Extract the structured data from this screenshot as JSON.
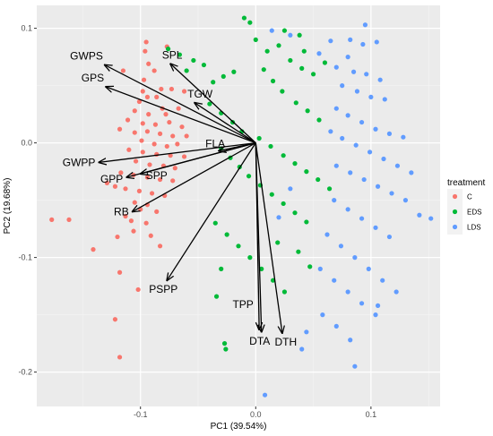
{
  "chart_data": {
    "type": "scatter",
    "title": "",
    "xlabel": "PC1 (39.54%)",
    "ylabel": "PC2 (19.68%)",
    "xlim": [
      -0.19,
      0.16
    ],
    "ylim": [
      -0.23,
      0.12
    ],
    "x_ticks": [
      -0.1,
      0.0,
      0.1
    ],
    "x_tick_labels": [
      "-0.1",
      "0.0",
      "0.1"
    ],
    "y_ticks": [
      -0.2,
      -0.1,
      0.0,
      0.1
    ],
    "y_tick_labels": [
      "-0.2",
      "-0.1",
      "0.0",
      "0.1"
    ],
    "grid": true,
    "legend_placement": "right",
    "legend": {
      "title": "treatment",
      "entries": [
        {
          "label": "C",
          "color": "#F8766D"
        },
        {
          "label": "EDS",
          "color": "#00BA38"
        },
        {
          "label": "LDS",
          "color": "#619CFF"
        }
      ]
    },
    "series": [
      {
        "name": "C",
        "color": "#F8766D",
        "points": [
          [
            -0.095,
            0.088
          ],
          [
            -0.096,
            0.08
          ],
          [
            -0.077,
            0.084
          ],
          [
            -0.097,
            0.055
          ],
          [
            -0.115,
            0.063
          ],
          [
            -0.093,
            0.069
          ],
          [
            -0.088,
            0.063
          ],
          [
            -0.098,
            0.045
          ],
          [
            -0.082,
            0.047
          ],
          [
            -0.073,
            0.047
          ],
          [
            -0.094,
            0.04
          ],
          [
            -0.101,
            0.036
          ],
          [
            -0.086,
            0.04
          ],
          [
            -0.081,
            0.03
          ],
          [
            -0.105,
            0.028
          ],
          [
            -0.093,
            0.025
          ],
          [
            -0.078,
            0.025
          ],
          [
            -0.067,
            0.03
          ],
          [
            -0.062,
            0.045
          ],
          [
            -0.111,
            0.02
          ],
          [
            -0.098,
            0.017
          ],
          [
            -0.087,
            0.016
          ],
          [
            -0.075,
            0.018
          ],
          [
            -0.064,
            0.014
          ],
          [
            -0.118,
            0.012
          ],
          [
            -0.105,
            0.009
          ],
          [
            -0.094,
            0.01
          ],
          [
            -0.083,
            0.008
          ],
          [
            -0.072,
            0.006
          ],
          [
            -0.06,
            0.006
          ],
          [
            -0.099,
            0.002
          ],
          [
            -0.088,
            -0.001
          ],
          [
            -0.077,
            -0.003
          ],
          [
            -0.068,
            -0.001
          ],
          [
            -0.11,
            -0.006
          ],
          [
            -0.098,
            -0.008
          ],
          [
            -0.086,
            -0.01
          ],
          [
            -0.074,
            -0.011
          ],
          [
            -0.062,
            -0.012
          ],
          [
            -0.104,
            -0.016
          ],
          [
            -0.092,
            -0.019
          ],
          [
            -0.08,
            -0.02
          ],
          [
            -0.07,
            -0.022
          ],
          [
            -0.117,
            -0.026
          ],
          [
            -0.106,
            -0.028
          ],
          [
            -0.094,
            -0.03
          ],
          [
            -0.083,
            -0.032
          ],
          [
            -0.072,
            -0.033
          ],
          [
            -0.129,
            -0.035
          ],
          [
            -0.122,
            -0.038
          ],
          [
            -0.113,
            -0.04
          ],
          [
            -0.101,
            -0.042
          ],
          [
            -0.09,
            -0.044
          ],
          [
            -0.079,
            -0.046
          ],
          [
            -0.105,
            -0.052
          ],
          [
            -0.094,
            -0.054
          ],
          [
            -0.1,
            -0.058
          ],
          [
            -0.086,
            -0.06
          ],
          [
            -0.113,
            -0.064
          ],
          [
            -0.108,
            -0.068
          ],
          [
            -0.095,
            -0.07
          ],
          [
            -0.106,
            -0.077
          ],
          [
            -0.091,
            -0.081
          ],
          [
            -0.083,
            -0.09
          ],
          [
            -0.12,
            -0.082
          ],
          [
            -0.141,
            -0.093
          ],
          [
            -0.177,
            -0.067
          ],
          [
            -0.162,
            -0.067
          ],
          [
            -0.118,
            -0.113
          ],
          [
            -0.102,
            -0.128
          ],
          [
            -0.122,
            -0.154
          ],
          [
            -0.118,
            -0.187
          ]
        ]
      },
      {
        "name": "EDS",
        "color": "#00BA38",
        "points": [
          [
            -0.076,
            0.082
          ],
          [
            -0.066,
            0.077
          ],
          [
            -0.054,
            0.072
          ],
          [
            -0.06,
            0.063
          ],
          [
            -0.045,
            0.068
          ],
          [
            -0.037,
            0.053
          ],
          [
            -0.028,
            0.058
          ],
          [
            -0.019,
            0.062
          ],
          [
            -0.01,
            0.109
          ],
          [
            -0.005,
            0.105
          ],
          [
            0.0,
            0.09
          ],
          [
            0.01,
            0.08
          ],
          [
            0.02,
            0.085
          ],
          [
            0.03,
            0.072
          ],
          [
            0.04,
            0.065
          ],
          [
            0.05,
            0.06
          ],
          [
            0.06,
            0.07
          ],
          [
            0.038,
            0.094
          ],
          [
            0.025,
            0.098
          ],
          [
            0.042,
            0.08
          ],
          [
            0.007,
            0.064
          ],
          [
            0.015,
            0.054
          ],
          [
            0.023,
            0.045
          ],
          [
            0.035,
            0.035
          ],
          [
            0.045,
            0.028
          ],
          [
            0.055,
            0.02
          ],
          [
            -0.04,
            0.034
          ],
          [
            -0.03,
            0.026
          ],
          [
            -0.02,
            0.018
          ],
          [
            -0.012,
            0.01
          ],
          [
            0.003,
            0.004
          ],
          [
            0.013,
            -0.003
          ],
          [
            0.024,
            -0.011
          ],
          [
            0.034,
            -0.018
          ],
          [
            0.044,
            -0.025
          ],
          [
            0.054,
            -0.032
          ],
          [
            0.064,
            -0.04
          ],
          [
            -0.03,
            -0.005
          ],
          [
            -0.022,
            -0.013
          ],
          [
            -0.014,
            -0.021
          ],
          [
            -0.006,
            -0.029
          ],
          [
            0.004,
            -0.037
          ],
          [
            0.014,
            -0.045
          ],
          [
            0.024,
            -0.053
          ],
          [
            0.034,
            -0.061
          ],
          [
            0.044,
            -0.069
          ],
          [
            -0.035,
            -0.07
          ],
          [
            -0.025,
            -0.08
          ],
          [
            -0.015,
            -0.09
          ],
          [
            -0.005,
            -0.1
          ],
          [
            0.005,
            -0.11
          ],
          [
            0.015,
            -0.12
          ],
          [
            0.025,
            -0.13
          ],
          [
            -0.034,
            -0.134
          ],
          [
            0.019,
            -0.087
          ],
          [
            0.037,
            -0.095
          ],
          [
            0.047,
            -0.108
          ],
          [
            -0.027,
            -0.175
          ],
          [
            -0.026,
            -0.18
          ],
          [
            -0.03,
            -0.11
          ]
        ]
      },
      {
        "name": "LDS",
        "color": "#619CFF",
        "points": [
          [
            0.014,
            0.098
          ],
          [
            0.03,
            0.094
          ],
          [
            0.055,
            0.078
          ],
          [
            0.065,
            0.089
          ],
          [
            0.082,
            0.09
          ],
          [
            0.095,
            0.103
          ],
          [
            0.093,
            0.086
          ],
          [
            0.105,
            0.088
          ],
          [
            0.08,
            0.075
          ],
          [
            0.07,
            0.066
          ],
          [
            0.085,
            0.062
          ],
          [
            0.096,
            0.06
          ],
          [
            0.108,
            0.055
          ],
          [
            0.075,
            0.05
          ],
          [
            0.088,
            0.045
          ],
          [
            0.1,
            0.04
          ],
          [
            0.112,
            0.038
          ],
          [
            0.07,
            0.03
          ],
          [
            0.08,
            0.024
          ],
          [
            0.092,
            0.018
          ],
          [
            0.104,
            0.012
          ],
          [
            0.116,
            0.008
          ],
          [
            0.128,
            0.005
          ],
          [
            0.065,
            0.01
          ],
          [
            0.075,
            0.004
          ],
          [
            0.087,
            -0.002
          ],
          [
            0.099,
            -0.008
          ],
          [
            0.111,
            -0.014
          ],
          [
            0.123,
            -0.02
          ],
          [
            0.135,
            -0.026
          ],
          [
            0.07,
            -0.02
          ],
          [
            0.082,
            -0.026
          ],
          [
            0.094,
            -0.032
          ],
          [
            0.106,
            -0.038
          ],
          [
            0.118,
            -0.044
          ],
          [
            0.13,
            -0.05
          ],
          [
            0.142,
            -0.063
          ],
          [
            0.152,
            -0.066
          ],
          [
            0.068,
            -0.05
          ],
          [
            0.08,
            -0.058
          ],
          [
            0.092,
            -0.066
          ],
          [
            0.104,
            -0.074
          ],
          [
            0.116,
            -0.082
          ],
          [
            0.062,
            -0.08
          ],
          [
            0.074,
            -0.09
          ],
          [
            0.086,
            -0.1
          ],
          [
            0.098,
            -0.11
          ],
          [
            0.11,
            -0.12
          ],
          [
            0.122,
            -0.13
          ],
          [
            0.056,
            -0.11
          ],
          [
            0.068,
            -0.12
          ],
          [
            0.08,
            -0.13
          ],
          [
            0.092,
            -0.14
          ],
          [
            0.104,
            -0.15
          ],
          [
            0.058,
            -0.15
          ],
          [
            0.07,
            -0.16
          ],
          [
            0.082,
            -0.172
          ],
          [
            0.044,
            -0.165
          ],
          [
            0.04,
            -0.18
          ],
          [
            0.086,
            -0.195
          ],
          [
            0.02,
            -0.065
          ],
          [
            0.03,
            -0.04
          ],
          [
            0.008,
            -0.22
          ],
          [
            0.106,
            -0.142
          ]
        ]
      }
    ],
    "loadings": [
      {
        "name": "GWPS",
        "x": -0.131,
        "y": 0.068
      },
      {
        "name": "SPL",
        "x": -0.074,
        "y": 0.069
      },
      {
        "name": "GPS",
        "x": -0.13,
        "y": 0.049
      },
      {
        "name": "TGW",
        "x": -0.053,
        "y": 0.035
      },
      {
        "name": "FLA",
        "x": -0.032,
        "y": -0.007
      },
      {
        "name": "GWPP",
        "x": -0.136,
        "y": -0.017
      },
      {
        "name": "GPP",
        "x": -0.112,
        "y": -0.03
      },
      {
        "name": "SPP",
        "x": -0.1,
        "y": -0.027
      },
      {
        "name": "RB",
        "x": -0.107,
        "y": -0.06
      },
      {
        "name": "PSPP",
        "x": -0.077,
        "y": -0.12
      },
      {
        "name": "TPP",
        "x": 0.003,
        "y": -0.163
      },
      {
        "name": "DTA",
        "x": 0.005,
        "y": -0.165
      },
      {
        "name": "DTH",
        "x": 0.023,
        "y": -0.166
      }
    ]
  }
}
